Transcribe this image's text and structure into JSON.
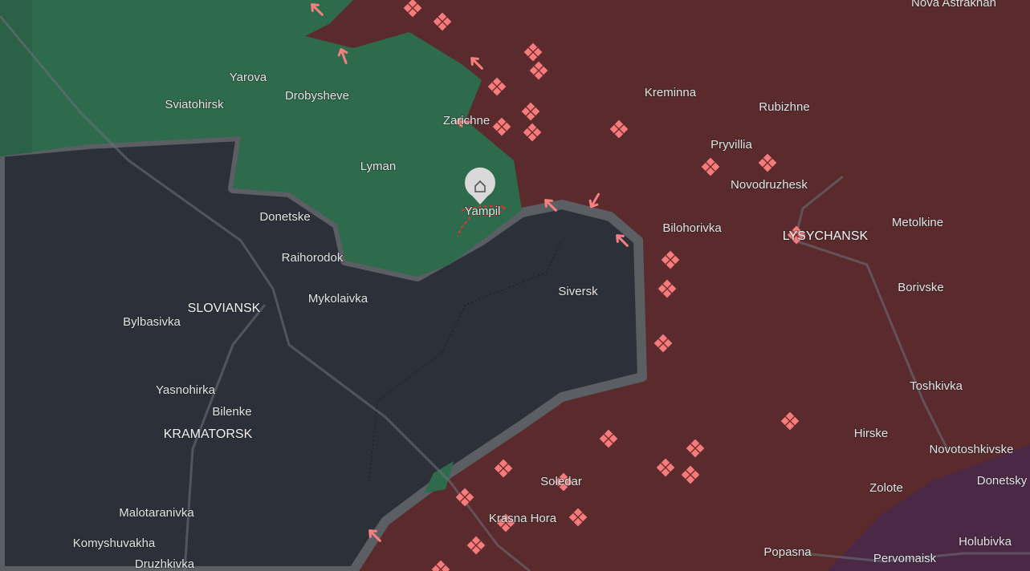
{
  "places": [
    {
      "label": "Nova Astrakhan"
    },
    {
      "label": "Yarova"
    },
    {
      "label": "Drobysheve"
    },
    {
      "label": "Sviatohirsk"
    },
    {
      "label": "Kreminna"
    },
    {
      "label": "Rubizhne"
    },
    {
      "label": "Zarichne"
    },
    {
      "label": "Pryvillia"
    },
    {
      "label": "Lyman"
    },
    {
      "label": "Novodruzhesk"
    },
    {
      "label": "Yampil"
    },
    {
      "label": "Donetske"
    },
    {
      "label": "Metolkine"
    },
    {
      "label": "Bilohorivka"
    },
    {
      "label": "LYSYCHANSK"
    },
    {
      "label": "Raihorodok"
    },
    {
      "label": "Borivske"
    },
    {
      "label": "Siversk"
    },
    {
      "label": "Mykolaivka"
    },
    {
      "label": "SLOVIANSK"
    },
    {
      "label": "Bylbasivka"
    },
    {
      "label": "Toshkivka"
    },
    {
      "label": "Yasnohirka"
    },
    {
      "label": "Bilenke"
    },
    {
      "label": "KRAMATORSK"
    },
    {
      "label": "Hirske"
    },
    {
      "label": "Novotoshkivske"
    },
    {
      "label": "Soledar"
    },
    {
      "label": "Donetsky"
    },
    {
      "label": "Zolote"
    },
    {
      "label": "Malotaranivka"
    },
    {
      "label": "Krasna Hora"
    },
    {
      "label": "Komyshuvakha"
    },
    {
      "label": "Popasna"
    },
    {
      "label": "Pervomaisk"
    },
    {
      "label": "Holubivka"
    },
    {
      "label": "Druzhkivka"
    }
  ]
}
